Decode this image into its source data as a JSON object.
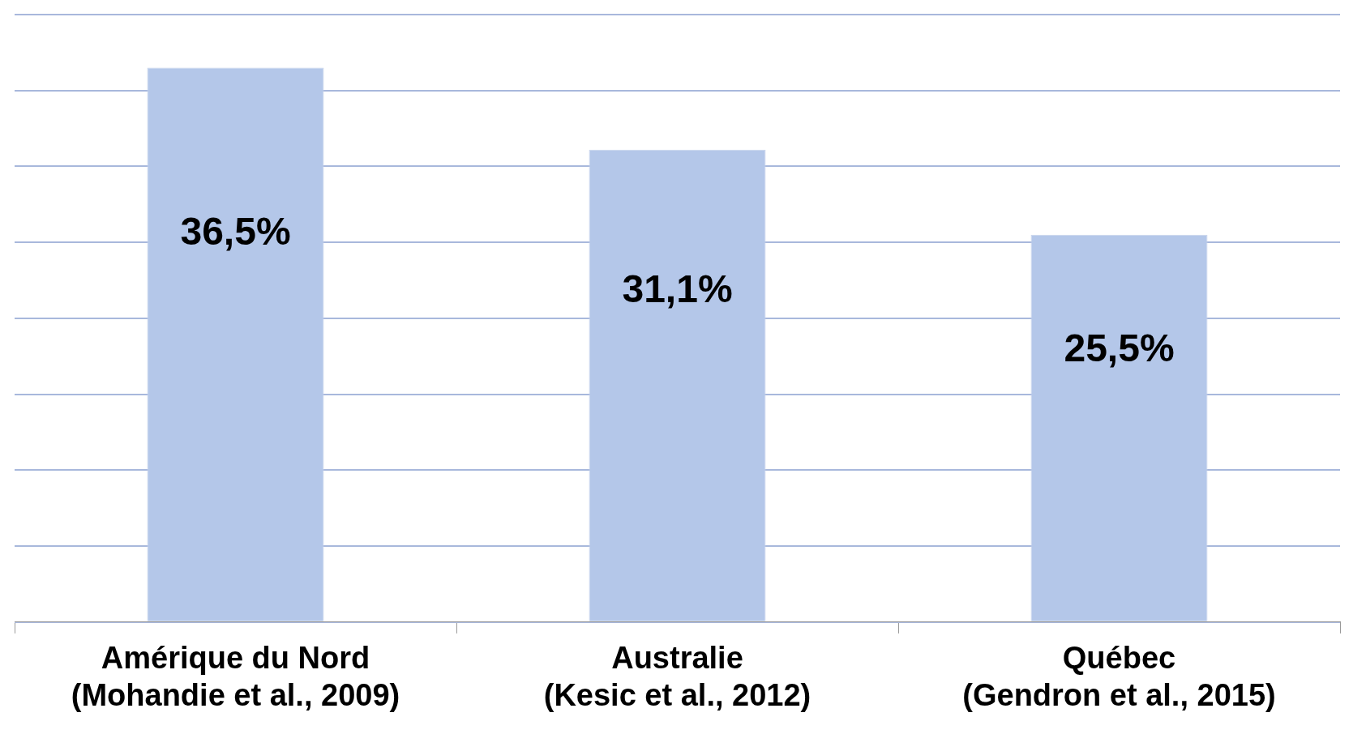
{
  "chart_data": {
    "type": "bar",
    "categories": [
      "Amérique du Nord\n(Mohandie et al., 2009)",
      "Australie\n(Kesic et al., 2012)",
      "Québec\n(Gendron et al., 2015)"
    ],
    "values": [
      36.5,
      31.1,
      25.5
    ],
    "value_labels": [
      "36,5%",
      "31,1%",
      "25,5%"
    ],
    "color": "#b4c7e9",
    "ylim": [
      0,
      40
    ],
    "yticks": [
      0,
      5,
      10,
      15,
      20,
      25,
      30,
      35,
      40
    ],
    "grid": "y",
    "tick_labels": "x",
    "legend": false
  }
}
